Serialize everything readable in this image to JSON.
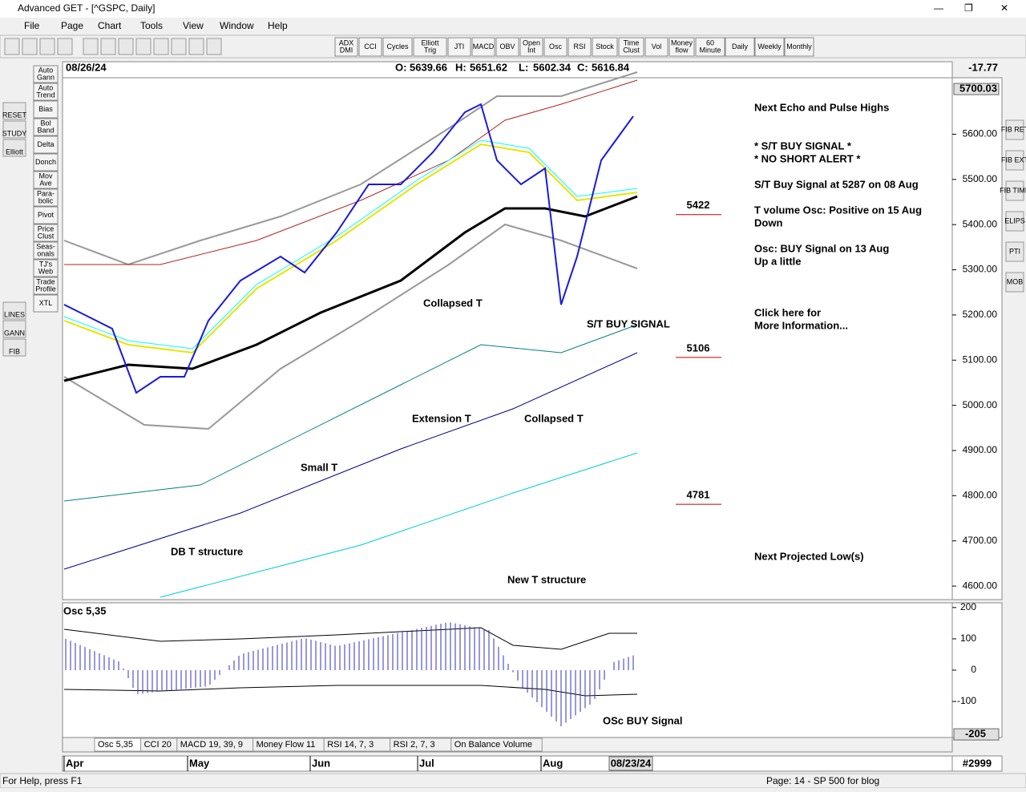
{
  "window": {
    "title": "Advanced GET - [^GSPC, Daily]"
  },
  "menu": [
    "File",
    "Page",
    "Chart",
    "Tools",
    "View",
    "Window",
    "Help"
  ],
  "toolbar_buttons": [
    [
      "ADX",
      "DMI"
    ],
    [
      "CCI"
    ],
    [
      "Cycles"
    ],
    [
      "Elliott",
      "Trig"
    ],
    [
      "JTI"
    ],
    [
      "MACD"
    ],
    [
      "OBV"
    ],
    [
      "Open",
      "Int"
    ],
    [
      "Osc"
    ],
    [
      "RSI"
    ],
    [
      "Stock"
    ],
    [
      "Time",
      "Clust"
    ],
    [
      "Vol"
    ],
    [
      "Money",
      "flow"
    ]
  ],
  "timeframes": [
    [
      "60",
      "Minute"
    ],
    [
      "Daily"
    ],
    [
      "Weekly"
    ],
    [
      "Monthly"
    ]
  ],
  "left_icons": [
    "RESET",
    "STUDY",
    "Elliott",
    "LINES",
    "GANN",
    "FIB"
  ],
  "left_tools": [
    [
      "Auto",
      "Gann"
    ],
    [
      "Auto",
      "Trend"
    ],
    [
      "Bias"
    ],
    [
      "Bol",
      "Band"
    ],
    [
      "Delta"
    ],
    [
      "Donch"
    ],
    [
      "Mov",
      "Ave"
    ],
    [
      "Para-",
      "bolic"
    ],
    [
      "Pivot"
    ],
    [
      "Price",
      "Clust"
    ],
    [
      "Seas-",
      "onals"
    ],
    [
      "TJ's",
      "Web"
    ],
    [
      "Trade",
      "Profile"
    ],
    [
      "XTL"
    ]
  ],
  "right_icons": [
    "FIB RET",
    "FIB EXT",
    "FIB TIME",
    "ELIPS",
    "PTI",
    "MOB"
  ],
  "quote": {
    "date": "08/26/24",
    "open_label": "O:",
    "open": 5639.66,
    "high_label": "H:",
    "high": 5651.62,
    "low_label": "L:",
    "low": 5602.34,
    "close_label": "C:",
    "close": 5616.84,
    "change": -17.77
  },
  "price_axis": {
    "ylim": [
      4570,
      5725
    ],
    "last": 5700.03,
    "yticks": [
      {
        "value": 5600,
        "label": "5600.00"
      },
      {
        "value": 5500,
        "label": "5500.00"
      },
      {
        "value": 5400,
        "label": "5400.00"
      },
      {
        "value": 5300,
        "label": "5300.00"
      },
      {
        "value": 5200,
        "label": "5200.00"
      },
      {
        "value": 5100,
        "label": "5100.00"
      },
      {
        "value": 5000,
        "label": "5000.00"
      },
      {
        "value": 4900,
        "label": "4900.00"
      },
      {
        "value": 4800,
        "label": "4800.00"
      },
      {
        "value": 4700,
        "label": "4700.00"
      },
      {
        "value": 4600,
        "label": "4600.00"
      }
    ]
  },
  "levels": [
    5422,
    5106,
    4781
  ],
  "annotations": [
    "Collapsed T",
    "Extension T",
    "Collapsed T",
    "Small T",
    "DB T structure",
    "New T structure",
    "S/T BUY SIGNAL"
  ],
  "right_panel": [
    "Next Echo and Pulse Highs",
    "* S/T BUY SIGNAL *",
    "* NO SHORT ALERT *",
    "S/T Buy Signal at 5287 on 08 Aug",
    "T volume Osc: Positive on 15 Aug",
    "Down",
    "Osc: BUY Signal on 13 Aug",
    "Up a little",
    "Click here for",
    "More Information...",
    "Next Projected Low(s)"
  ],
  "oscillator": {
    "title": "Osc 5,35",
    "ylim": [
      -215,
      215
    ],
    "yticks": [
      200,
      100,
      0,
      -100
    ],
    "last": -205,
    "annotation": "OSc BUY Signal"
  },
  "tabs": [
    "Osc 5,35",
    "CCI 20",
    "MACD 19, 39, 9",
    "Money Flow 11",
    "RSI 14, 7, 3",
    "RSI 2, 7, 3",
    "On Balance Volume"
  ],
  "months": [
    "Apr",
    "May",
    "Jun",
    "Jul",
    "Aug"
  ],
  "cursor_date": "08/23/24",
  "bar_count": "#2999",
  "status": {
    "help": "For Help, press F1",
    "page": "Page: 14 - SP 500 for blog"
  }
}
